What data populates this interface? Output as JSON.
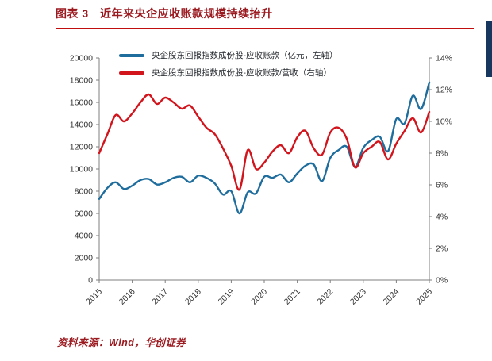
{
  "header": {
    "title": "图表 3　近年来央企应收账款规模持续抬升"
  },
  "legend": [
    {
      "label": "央企股东回报指数成份股-应收账款（亿元，左轴）"
    },
    {
      "label": "央企股东回报指数成份股-应收账款/营收（右轴）"
    }
  ],
  "footer": {
    "source": "资料来源：Wind，华创证券"
  },
  "colors": {
    "title_red": "#9b1a20",
    "rule_red": "#c00d0d",
    "edge_navy": "#17375e",
    "receivables_blue": "#1f6d9d",
    "ratio_red": "#d2151d",
    "axis_gray": "#7f7f7f",
    "tick_text": "#333333"
  },
  "chart_data": {
    "type": "line",
    "title": "图表 3　近年来央企应收账款规模持续抬升",
    "x_frequency": "quarterly",
    "x_labels": [
      "2015",
      "2016",
      "2017",
      "2018",
      "2019",
      "2020",
      "2021",
      "2022",
      "2023",
      "2024",
      "2025"
    ],
    "left_axis": {
      "min": 0,
      "max": 20000,
      "step": 2000
    },
    "right_axis": {
      "min": 0,
      "max": 14,
      "step": 2,
      "suffix": "%"
    },
    "grid": false,
    "legend_position": "top",
    "series": [
      {
        "name": "央企股东回报指数成份股-应收账款（亿元，左轴）",
        "axis": "left",
        "color": "#1f6d9d",
        "values": [
          7300,
          8300,
          8800,
          8200,
          8500,
          9000,
          9100,
          8600,
          8800,
          9200,
          9300,
          8800,
          9400,
          9200,
          8700,
          7700,
          8000,
          6000,
          7900,
          7800,
          9300,
          9200,
          9500,
          8800,
          9600,
          10300,
          10400,
          8900,
          11000,
          11700,
          12000,
          10200,
          11900,
          12600,
          12900,
          11600,
          14500,
          14100,
          16600,
          15400,
          17800
        ]
      },
      {
        "name": "央企股东回报指数成份股-应收账款/营收（右轴）",
        "axis": "right",
        "color": "#d2151d",
        "values": [
          8.0,
          9.2,
          10.4,
          10.0,
          10.5,
          11.2,
          11.7,
          11.1,
          11.5,
          11.2,
          10.8,
          11.0,
          10.3,
          9.6,
          9.2,
          8.3,
          7.2,
          5.7,
          8.2,
          7.0,
          7.4,
          8.1,
          8.5,
          8.0,
          9.0,
          9.4,
          8.3,
          7.9,
          9.3,
          9.6,
          8.9,
          7.1,
          8.0,
          8.4,
          8.7,
          7.6,
          8.6,
          9.4,
          10.2,
          9.3,
          10.6
        ]
      }
    ]
  }
}
